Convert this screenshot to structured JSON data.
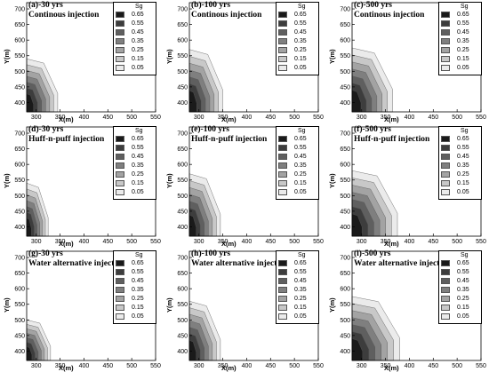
{
  "legend_title": "Sg",
  "legend_levels": [
    {
      "label": "0.65",
      "color": "#1a1a1a"
    },
    {
      "label": "0.55",
      "color": "#3d3d3d"
    },
    {
      "label": "0.45",
      "color": "#5f5f5f"
    },
    {
      "label": "0.35",
      "color": "#7f7f7f"
    },
    {
      "label": "0.25",
      "color": "#a3a3a3"
    },
    {
      "label": "0.15",
      "color": "#c8c8c8"
    },
    {
      "label": "0.05",
      "color": "#ebebeb"
    }
  ],
  "chart_data": [
    {
      "type": "heatmap",
      "title": "(a)-30 yrs",
      "subtitle": "Continous injection",
      "xlabel": "X(m)",
      "ylabel": "Y(m)",
      "xlim": [
        280,
        550
      ],
      "ylim": [
        370,
        720
      ],
      "xticks": [
        300,
        350,
        400,
        450,
        500,
        550
      ],
      "yticks": [
        400,
        450,
        500,
        550,
        600,
        650,
        700
      ],
      "plume_extent": {
        "x": [
          280,
          345
        ],
        "y": [
          370,
          540
        ]
      }
    },
    {
      "type": "heatmap",
      "title": "(b)-100 yrs",
      "subtitle": "Continous injection",
      "xlabel": "X(m)",
      "ylabel": "Y(m)",
      "xlim": [
        280,
        550
      ],
      "ylim": [
        370,
        720
      ],
      "xticks": [
        300,
        350,
        400,
        450,
        500,
        550
      ],
      "yticks": [
        400,
        450,
        500,
        550,
        600,
        650,
        700
      ],
      "plume_extent": {
        "x": [
          280,
          350
        ],
        "y": [
          370,
          570
        ]
      }
    },
    {
      "type": "heatmap",
      "title": "(c)-500 yrs",
      "subtitle": "Continous injection",
      "xlabel": "X(m)",
      "ylabel": "Y(m)",
      "xlim": [
        280,
        550
      ],
      "ylim": [
        370,
        720
      ],
      "xticks": [
        300,
        350,
        400,
        450,
        500,
        550
      ],
      "yticks": [
        400,
        450,
        500,
        550,
        600,
        650,
        700
      ],
      "plume_extent": {
        "x": [
          280,
          365
        ],
        "y": [
          370,
          575
        ]
      }
    },
    {
      "type": "heatmap",
      "title": "(d)-30 yrs",
      "subtitle": "Huff-n-puff injection",
      "xlabel": "X(m)",
      "ylabel": "Y(m)",
      "xlim": [
        280,
        550
      ],
      "ylim": [
        370,
        720
      ],
      "xticks": [
        300,
        350,
        400,
        450,
        500,
        550
      ],
      "yticks": [
        400,
        450,
        500,
        550,
        600,
        650,
        700
      ],
      "plume_extent": {
        "x": [
          280,
          325
        ],
        "y": [
          370,
          540
        ]
      }
    },
    {
      "type": "heatmap",
      "title": "(e)-100 yrs",
      "subtitle": "Huff-n-puff injection",
      "xlabel": "X(m)",
      "ylabel": "Y(m)",
      "xlim": [
        280,
        550
      ],
      "ylim": [
        370,
        720
      ],
      "xticks": [
        300,
        350,
        400,
        450,
        500,
        550
      ],
      "yticks": [
        400,
        450,
        500,
        550,
        600,
        650,
        700
      ],
      "plume_extent": {
        "x": [
          280,
          345
        ],
        "y": [
          370,
          570
        ]
      }
    },
    {
      "type": "heatmap",
      "title": "(f)-500 yrs",
      "subtitle": "Huff-n-puff injection",
      "xlabel": "X(m)",
      "ylabel": "Y(m)",
      "xlim": [
        280,
        550
      ],
      "ylim": [
        370,
        720
      ],
      "xticks": [
        300,
        350,
        400,
        450,
        500,
        550
      ],
      "yticks": [
        400,
        450,
        500,
        550,
        600,
        650,
        700
      ],
      "plume_extent": {
        "x": [
          280,
          375
        ],
        "y": [
          370,
          580
        ]
      }
    },
    {
      "type": "heatmap",
      "title": "(g)-30 yrs",
      "subtitle": "Water alternative injection",
      "xlabel": "X(m)",
      "ylabel": "Y(m)",
      "xlim": [
        280,
        550
      ],
      "ylim": [
        370,
        720
      ],
      "xticks": [
        300,
        350,
        400,
        450,
        500,
        550
      ],
      "yticks": [
        400,
        450,
        500,
        550,
        600,
        650,
        700
      ],
      "plume_extent": {
        "x": [
          280,
          330
        ],
        "y": [
          370,
          500
        ]
      }
    },
    {
      "type": "heatmap",
      "title": "(h)-100 yrs",
      "subtitle": "Water alternative injection",
      "xlabel": "X(m)",
      "ylabel": "Y(m)",
      "xlim": [
        280,
        550
      ],
      "ylim": [
        370,
        720
      ],
      "xticks": [
        300,
        350,
        400,
        450,
        500,
        550
      ],
      "yticks": [
        400,
        450,
        500,
        550,
        600,
        650,
        700
      ],
      "plume_extent": {
        "x": [
          280,
          345
        ],
        "y": [
          370,
          560
        ]
      }
    },
    {
      "type": "heatmap",
      "title": "(i)-500 yrs",
      "subtitle": "Water alternative injection",
      "xlabel": "X(m)",
      "ylabel": "Y(m)",
      "xlim": [
        280,
        550
      ],
      "ylim": [
        370,
        720
      ],
      "xticks": [
        300,
        350,
        400,
        450,
        500,
        550
      ],
      "yticks": [
        400,
        450,
        500,
        550,
        600,
        650,
        700
      ],
      "plume_extent": {
        "x": [
          280,
          380
        ],
        "y": [
          370,
          575
        ]
      }
    }
  ]
}
